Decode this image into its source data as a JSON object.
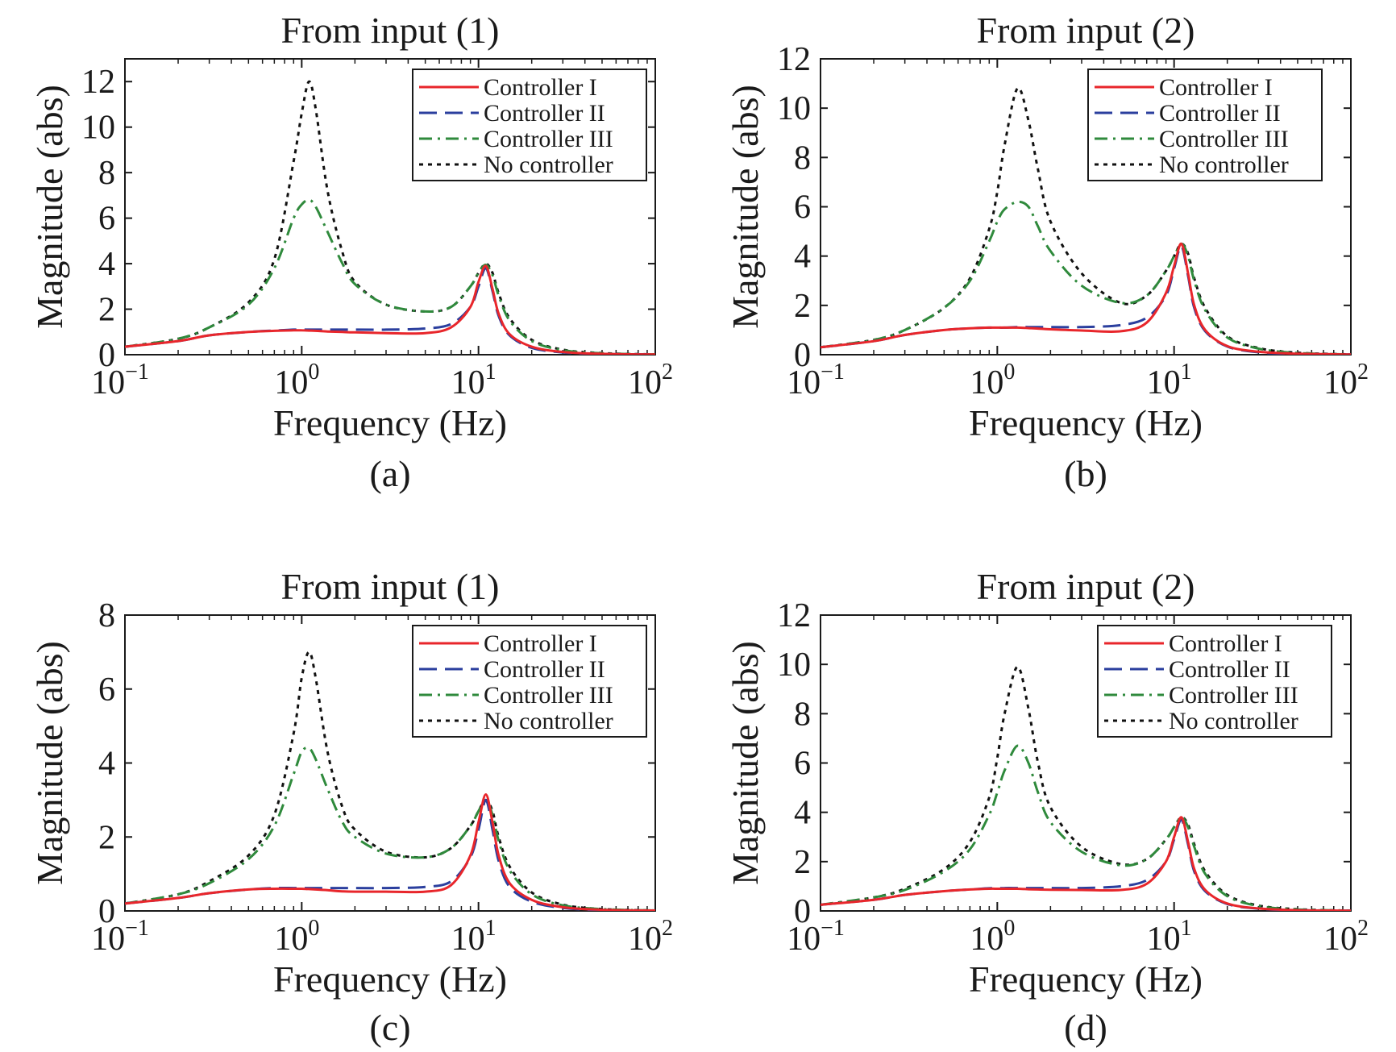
{
  "chart_data": [
    {
      "type": "line",
      "panel_label": "(a)",
      "title": "From input (1)",
      "xlabel": "Frequency (Hz)",
      "ylabel": "Magnitude (abs)",
      "xscale": "log",
      "xlim": [
        0.1,
        100
      ],
      "ylim": [
        0,
        13
      ],
      "yticks": [
        0,
        2,
        4,
        6,
        8,
        10,
        12
      ],
      "xtick_labels": [
        {
          "base": "10",
          "exp": "−1"
        },
        {
          "base": "10",
          "exp": "0"
        },
        {
          "base": "10",
          "exp": "1"
        },
        {
          "base": "10",
          "exp": "2"
        }
      ],
      "legend_position": "top-right",
      "x": [
        0.1,
        0.2,
        0.3,
        0.5,
        0.7,
        0.9,
        1.0,
        1.1,
        1.2,
        1.4,
        1.7,
        2.0,
        3.0,
        5.0,
        7.0,
        9.0,
        10.0,
        11.0,
        12.0,
        13.0,
        15.0,
        20.0,
        30.0,
        50.0,
        100.0
      ],
      "series": [
        {
          "name": "Controller I",
          "color": "#e8262b",
          "dash": "solid",
          "values": [
            0.35,
            0.6,
            0.85,
            1.0,
            1.05,
            1.07,
            1.07,
            1.06,
            1.05,
            1.02,
            1.0,
            0.98,
            0.95,
            0.95,
            1.2,
            2.1,
            3.2,
            3.9,
            2.9,
            1.8,
            0.9,
            0.35,
            0.12,
            0.04,
            0.01
          ]
        },
        {
          "name": "Controller II",
          "color": "#2b3f9e",
          "dash": "long-dash",
          "values": [
            0.35,
            0.6,
            0.85,
            1.0,
            1.06,
            1.1,
            1.1,
            1.1,
            1.1,
            1.1,
            1.1,
            1.1,
            1.1,
            1.15,
            1.35,
            2.1,
            3.0,
            3.8,
            2.8,
            1.7,
            0.85,
            0.3,
            0.1,
            0.03,
            0.01
          ]
        },
        {
          "name": "Controller III",
          "color": "#2f8a3c",
          "dash": "dash-dot",
          "values": [
            0.35,
            0.7,
            1.2,
            2.2,
            3.8,
            6.0,
            6.6,
            6.8,
            6.5,
            5.4,
            4.0,
            3.1,
            2.2,
            1.9,
            2.1,
            3.0,
            3.6,
            3.95,
            3.5,
            2.6,
            1.5,
            0.6,
            0.2,
            0.06,
            0.01
          ]
        },
        {
          "name": "No controller",
          "color": "#111111",
          "dash": "dotted",
          "values": [
            0.35,
            0.7,
            1.2,
            2.3,
            4.2,
            8.5,
            10.6,
            12.0,
            10.8,
            7.2,
            4.5,
            3.2,
            2.2,
            1.9,
            2.1,
            3.0,
            3.6,
            4.0,
            3.6,
            2.7,
            1.6,
            0.65,
            0.22,
            0.07,
            0.01
          ]
        }
      ]
    },
    {
      "type": "line",
      "panel_label": "(b)",
      "title": "From input (2)",
      "xlabel": "Frequency (Hz)",
      "ylabel": "Magnitude (abs)",
      "xscale": "log",
      "xlim": [
        0.1,
        100
      ],
      "ylim": [
        0,
        12
      ],
      "yticks": [
        0,
        2,
        4,
        6,
        8,
        10,
        12
      ],
      "xtick_labels": [
        {
          "base": "10",
          "exp": "−1"
        },
        {
          "base": "10",
          "exp": "0"
        },
        {
          "base": "10",
          "exp": "1"
        },
        {
          "base": "10",
          "exp": "2"
        }
      ],
      "legend_position": "top-right",
      "x": [
        0.1,
        0.2,
        0.3,
        0.5,
        0.7,
        0.9,
        1.0,
        1.1,
        1.3,
        1.5,
        1.7,
        2.0,
        3.0,
        5.0,
        7.0,
        9.0,
        10.0,
        11.0,
        12.0,
        13.0,
        15.0,
        20.0,
        30.0,
        50.0,
        100.0
      ],
      "series": [
        {
          "name": "Controller I",
          "color": "#e8262b",
          "dash": "solid",
          "values": [
            0.3,
            0.55,
            0.8,
            1.0,
            1.07,
            1.1,
            1.1,
            1.1,
            1.1,
            1.08,
            1.06,
            1.03,
            0.98,
            0.95,
            1.3,
            2.5,
            3.6,
            4.5,
            3.3,
            2.0,
            1.0,
            0.35,
            0.12,
            0.04,
            0.01
          ]
        },
        {
          "name": "Controller II",
          "color": "#2b3f9e",
          "dash": "long-dash",
          "values": [
            0.3,
            0.55,
            0.8,
            1.0,
            1.07,
            1.1,
            1.1,
            1.1,
            1.12,
            1.12,
            1.12,
            1.12,
            1.12,
            1.2,
            1.5,
            2.4,
            3.5,
            4.4,
            3.2,
            1.9,
            0.95,
            0.33,
            0.1,
            0.03,
            0.01
          ]
        },
        {
          "name": "Controller III",
          "color": "#2f8a3c",
          "dash": "dash-dot",
          "values": [
            0.3,
            0.6,
            1.0,
            1.9,
            3.0,
            4.6,
            5.4,
            5.9,
            6.2,
            6.0,
            5.2,
            4.2,
            2.8,
            2.1,
            2.4,
            3.4,
            4.0,
            4.5,
            4.0,
            3.0,
            1.8,
            0.7,
            0.25,
            0.07,
            0.01
          ]
        },
        {
          "name": "No controller",
          "color": "#111111",
          "dash": "dotted",
          "values": [
            0.3,
            0.6,
            1.0,
            1.9,
            3.1,
            5.1,
            6.6,
            8.5,
            10.8,
            9.5,
            7.5,
            5.4,
            3.3,
            2.1,
            2.4,
            3.4,
            4.0,
            4.5,
            4.1,
            3.1,
            1.9,
            0.75,
            0.27,
            0.08,
            0.01
          ]
        }
      ]
    },
    {
      "type": "line",
      "panel_label": "(c)",
      "title": "From input (1)",
      "xlabel": "Frequency (Hz)",
      "ylabel": "Magnitude (abs)",
      "xscale": "log",
      "xlim": [
        0.1,
        100
      ],
      "ylim": [
        0,
        8
      ],
      "yticks": [
        0,
        2,
        4,
        6,
        8
      ],
      "xtick_labels": [
        {
          "base": "10",
          "exp": "−1"
        },
        {
          "base": "10",
          "exp": "0"
        },
        {
          "base": "10",
          "exp": "1"
        },
        {
          "base": "10",
          "exp": "2"
        }
      ],
      "legend_position": "top-right",
      "x": [
        0.1,
        0.2,
        0.3,
        0.5,
        0.7,
        0.9,
        1.0,
        1.1,
        1.2,
        1.4,
        1.7,
        2.0,
        3.0,
        5.0,
        7.0,
        9.0,
        10.0,
        11.0,
        12.0,
        13.0,
        15.0,
        20.0,
        30.0,
        50.0,
        100.0
      ],
      "series": [
        {
          "name": "Controller I",
          "color": "#e8262b",
          "dash": "solid",
          "values": [
            0.2,
            0.35,
            0.48,
            0.58,
            0.6,
            0.6,
            0.6,
            0.59,
            0.58,
            0.56,
            0.53,
            0.52,
            0.52,
            0.52,
            0.7,
            1.5,
            2.4,
            3.15,
            2.4,
            1.5,
            0.75,
            0.3,
            0.1,
            0.03,
            0.01
          ]
        },
        {
          "name": "Controller II",
          "color": "#2b3f9e",
          "dash": "long-dash",
          "values": [
            0.2,
            0.35,
            0.48,
            0.58,
            0.62,
            0.62,
            0.62,
            0.62,
            0.62,
            0.62,
            0.62,
            0.62,
            0.62,
            0.65,
            0.8,
            1.45,
            2.2,
            3.0,
            2.2,
            1.35,
            0.65,
            0.25,
            0.08,
            0.02,
            0.01
          ]
        },
        {
          "name": "Controller III",
          "color": "#2f8a3c",
          "dash": "dash-dot",
          "values": [
            0.2,
            0.45,
            0.75,
            1.4,
            2.3,
            3.7,
            4.3,
            4.4,
            4.1,
            3.3,
            2.4,
            2.0,
            1.55,
            1.45,
            1.7,
            2.3,
            2.7,
            3.0,
            2.6,
            1.9,
            1.1,
            0.45,
            0.15,
            0.05,
            0.01
          ]
        },
        {
          "name": "No controller",
          "color": "#111111",
          "dash": "dotted",
          "values": [
            0.2,
            0.45,
            0.8,
            1.5,
            2.6,
            4.8,
            6.3,
            7.0,
            6.3,
            4.3,
            2.8,
            2.2,
            1.6,
            1.45,
            1.7,
            2.3,
            2.7,
            3.0,
            2.7,
            2.0,
            1.2,
            0.5,
            0.17,
            0.05,
            0.01
          ]
        }
      ]
    },
    {
      "type": "line",
      "panel_label": "(d)",
      "title": "From input (2)",
      "xlabel": "Frequency (Hz)",
      "ylabel": "Magnitude (abs)",
      "xscale": "log",
      "xlim": [
        0.1,
        100
      ],
      "ylim": [
        0,
        12
      ],
      "yticks": [
        0,
        2,
        4,
        6,
        8,
        10,
        12
      ],
      "xtick_labels": [
        {
          "base": "10",
          "exp": "−1"
        },
        {
          "base": "10",
          "exp": "0"
        },
        {
          "base": "10",
          "exp": "1"
        },
        {
          "base": "10",
          "exp": "2"
        }
      ],
      "legend_position": "top-right",
      "x": [
        0.1,
        0.2,
        0.3,
        0.5,
        0.7,
        0.9,
        1.0,
        1.1,
        1.3,
        1.5,
        1.7,
        2.0,
        3.0,
        5.0,
        7.0,
        9.0,
        10.0,
        11.0,
        12.0,
        13.0,
        15.0,
        20.0,
        30.0,
        50.0,
        100.0
      ],
      "series": [
        {
          "name": "Controller I",
          "color": "#e8262b",
          "dash": "solid",
          "values": [
            0.25,
            0.45,
            0.65,
            0.8,
            0.87,
            0.9,
            0.9,
            0.9,
            0.9,
            0.88,
            0.87,
            0.86,
            0.85,
            0.85,
            1.1,
            2.0,
            3.0,
            3.8,
            2.8,
            1.7,
            0.85,
            0.3,
            0.1,
            0.03,
            0.01
          ]
        },
        {
          "name": "Controller II",
          "color": "#2b3f9e",
          "dash": "long-dash",
          "values": [
            0.25,
            0.45,
            0.65,
            0.8,
            0.87,
            0.92,
            0.92,
            0.93,
            0.93,
            0.93,
            0.93,
            0.93,
            0.93,
            1.0,
            1.25,
            2.0,
            2.9,
            3.7,
            2.7,
            1.6,
            0.8,
            0.28,
            0.09,
            0.03,
            0.01
          ]
        },
        {
          "name": "Controller III",
          "color": "#2f8a3c",
          "dash": "dash-dot",
          "values": [
            0.25,
            0.55,
            0.85,
            1.6,
            2.5,
            3.9,
            4.8,
            5.7,
            6.7,
            6.0,
            4.8,
            3.6,
            2.4,
            1.85,
            2.1,
            2.9,
            3.4,
            3.8,
            3.4,
            2.6,
            1.5,
            0.6,
            0.2,
            0.06,
            0.01
          ]
        },
        {
          "name": "No controller",
          "color": "#111111",
          "dash": "dotted",
          "values": [
            0.25,
            0.55,
            0.9,
            1.7,
            2.8,
            4.6,
            6.2,
            8.0,
            9.9,
            8.2,
            6.0,
            4.2,
            2.6,
            1.9,
            2.1,
            2.9,
            3.4,
            3.8,
            3.5,
            2.7,
            1.6,
            0.65,
            0.22,
            0.07,
            0.01
          ]
        }
      ]
    }
  ]
}
